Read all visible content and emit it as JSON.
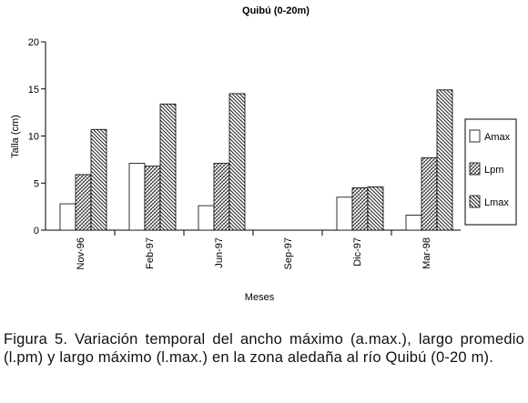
{
  "chart_data": {
    "type": "bar",
    "title": "Quibú (0-20m)",
    "xlabel": "Meses",
    "ylabel": "Talla (cm)",
    "ylim": [
      0,
      20
    ],
    "yticks": [
      "0",
      "5",
      "10",
      "15",
      "20"
    ],
    "categories": [
      "Nov-96",
      "Feb-97",
      "Jun-97",
      "Sep-97",
      "Dic-97",
      "Mar-98"
    ],
    "series": [
      {
        "name": "Amax",
        "pattern": "white",
        "values": [
          2.8,
          7.1,
          2.6,
          0,
          3.5,
          1.6
        ]
      },
      {
        "name": "Lpm",
        "pattern": "cross",
        "values": [
          5.9,
          6.8,
          7.1,
          0,
          4.5,
          7.7
        ]
      },
      {
        "name": "Lmax",
        "pattern": "diagonal",
        "values": [
          10.7,
          13.4,
          14.5,
          0,
          4.6,
          14.9
        ]
      }
    ],
    "legend_position": "right",
    "grid": false
  },
  "caption": "Figura 5. Variación temporal del ancho máximo (a.max.), largo promedio (l.pm) y largo máximo (l.max.) en la zona aledaña al río Quibú (0-20 m)."
}
